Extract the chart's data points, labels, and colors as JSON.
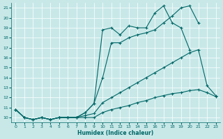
{
  "xlabel": "Humidex (Indice chaleur)",
  "bg_color": "#c8e8e8",
  "line_color": "#006666",
  "xlim": [
    -0.5,
    23.5
  ],
  "ylim": [
    9.5,
    21.5
  ],
  "xticks": [
    0,
    1,
    2,
    3,
    4,
    5,
    6,
    7,
    8,
    9,
    10,
    11,
    12,
    13,
    14,
    15,
    16,
    17,
    18,
    19,
    20,
    21,
    22,
    23
  ],
  "yticks": [
    10,
    11,
    12,
    13,
    14,
    15,
    16,
    17,
    18,
    19,
    20,
    21
  ],
  "lines": [
    {
      "x": [
        0,
        1,
        2,
        3,
        4,
        5,
        6,
        7,
        8,
        9,
        10,
        11,
        12,
        13,
        14,
        15,
        16,
        17,
        18,
        19,
        20,
        21,
        22,
        23
      ],
      "y": [
        10.8,
        10.0,
        9.8,
        10.0,
        9.8,
        10.0,
        10.0,
        10.0,
        10.0,
        10.0,
        10.5,
        10.8,
        11.0,
        11.2,
        11.5,
        11.7,
        12.0,
        12.2,
        12.4,
        12.5,
        12.7,
        12.8,
        12.5,
        12.1
      ]
    },
    {
      "x": [
        0,
        1,
        2,
        3,
        4,
        5,
        6,
        7,
        8,
        9,
        10,
        11,
        12,
        13,
        14,
        15,
        16,
        17,
        18,
        19,
        20,
        21,
        22,
        23
      ],
      "y": [
        10.8,
        10.0,
        9.8,
        10.0,
        9.8,
        10.0,
        10.0,
        10.0,
        10.2,
        10.4,
        11.5,
        12.0,
        12.5,
        13.0,
        13.5,
        14.0,
        14.5,
        15.0,
        15.5,
        16.0,
        16.5,
        16.8,
        13.2,
        12.2
      ]
    },
    {
      "x": [
        0,
        1,
        2,
        3,
        4,
        5,
        6,
        7,
        8,
        9,
        10,
        11,
        12,
        13,
        14,
        15,
        16,
        17,
        18,
        19,
        20,
        21,
        22,
        23
      ],
      "y": [
        10.8,
        10.0,
        9.8,
        10.0,
        9.8,
        10.0,
        10.0,
        10.0,
        10.5,
        11.4,
        14.0,
        17.5,
        17.5,
        18.0,
        18.3,
        18.5,
        18.8,
        19.5,
        20.2,
        21.0,
        21.2,
        19.5,
        null,
        null
      ]
    },
    {
      "x": [
        0,
        1,
        2,
        3,
        4,
        5,
        6,
        7,
        8,
        9,
        10,
        11,
        12,
        13,
        14,
        15,
        16,
        17,
        18,
        19,
        20,
        21,
        22,
        23
      ],
      "y": [
        10.8,
        10.0,
        9.8,
        10.0,
        9.8,
        10.0,
        10.0,
        10.0,
        10.5,
        11.4,
        18.8,
        19.0,
        18.3,
        19.2,
        19.0,
        19.0,
        20.5,
        21.2,
        19.5,
        19.0,
        16.8,
        null,
        null,
        null
      ]
    }
  ]
}
